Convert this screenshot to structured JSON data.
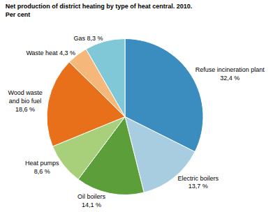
{
  "chart_data": {
    "type": "pie",
    "title": "Net production of district heating by type of heat central. 2010.",
    "subtitle": "Per cent",
    "categories": [
      "Refuse incineration plant\n32,4 %",
      "Electric boilers\n13,7 %",
      "Oil boilers\n14,1 %",
      "Heat pumps\n8,6 %",
      "Wood waste\nand bio fuel\n18,6 %",
      "Waste heat 4,3 %",
      "Gas 8,3 %"
    ],
    "values": [
      32.4,
      13.7,
      14.1,
      8.6,
      18.6,
      4.3,
      8.3
    ],
    "colors": [
      "#3B8DC0",
      "#A8CCE0",
      "#5B9E3A",
      "#A8D07A",
      "#E8701A",
      "#F5B87A",
      "#80C8D8"
    ]
  }
}
